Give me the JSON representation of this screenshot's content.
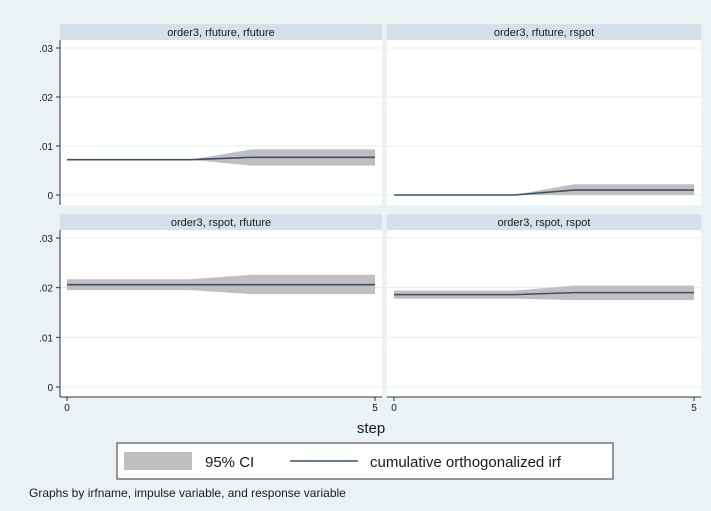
{
  "chart_data": [
    {
      "type": "area",
      "title": "order3, rfuture, rfuture",
      "x": [
        0,
        1,
        2,
        3,
        4,
        5
      ],
      "series": [
        {
          "name": "95% CI",
          "lower": [
            0.0072,
            0.0072,
            0.0072,
            0.006,
            0.006,
            0.006
          ],
          "upper": [
            0.0072,
            0.0072,
            0.0072,
            0.0093,
            0.0093,
            0.0093
          ]
        },
        {
          "name": "cumulative orthogonalized irf",
          "values": [
            0.0072,
            0.0072,
            0.0072,
            0.0077,
            0.0077,
            0.0077
          ]
        }
      ]
    },
    {
      "type": "area",
      "title": "order3, rfuture, rspot",
      "x": [
        0,
        1,
        2,
        3,
        4,
        5
      ],
      "series": [
        {
          "name": "95% CI",
          "lower": [
            0,
            0,
            0,
            0,
            0,
            0
          ],
          "upper": [
            0,
            0,
            0,
            0.0022,
            0.0022,
            0.0022
          ]
        },
        {
          "name": "cumulative orthogonalized irf",
          "values": [
            0,
            0,
            0,
            0.001,
            0.001,
            0.001
          ]
        }
      ]
    },
    {
      "type": "area",
      "title": "order3, rspot, rfuture",
      "x": [
        0,
        1,
        2,
        3,
        4,
        5
      ],
      "series": [
        {
          "name": "95% CI",
          "lower": [
            0.0195,
            0.0195,
            0.0195,
            0.0187,
            0.0187,
            0.0187
          ],
          "upper": [
            0.0217,
            0.0217,
            0.0217,
            0.0226,
            0.0226,
            0.0226
          ]
        },
        {
          "name": "cumulative orthogonalized irf",
          "values": [
            0.0206,
            0.0206,
            0.0206,
            0.0206,
            0.0206,
            0.0206
          ]
        }
      ]
    },
    {
      "type": "area",
      "title": "order3, rspot, rspot",
      "x": [
        0,
        1,
        2,
        3,
        4,
        5
      ],
      "series": [
        {
          "name": "95% CI",
          "lower": [
            0.0178,
            0.0178,
            0.0178,
            0.0175,
            0.0175,
            0.0175
          ],
          "upper": [
            0.0194,
            0.0194,
            0.0194,
            0.0204,
            0.0204,
            0.0204
          ]
        },
        {
          "name": "cumulative orthogonalized irf",
          "values": [
            0.0186,
            0.0186,
            0.0186,
            0.019,
            0.019,
            0.019
          ]
        }
      ]
    }
  ],
  "shared": {
    "xlabel": "step",
    "ylim": [
      0,
      0.03
    ],
    "y_ticks": [
      ".03",
      ".02",
      ".01",
      "0"
    ],
    "y_tick_values": [
      0.03,
      0.02,
      0.01,
      0
    ],
    "x_ticks": [
      "0",
      "5"
    ],
    "x_tick_values": [
      0,
      5
    ]
  },
  "legend": [
    {
      "label": "95% CI",
      "kind": "band"
    },
    {
      "label": "cumulative orthogonalized irf",
      "kind": "line"
    }
  ],
  "note": "Graphs by irfname, impulse variable, and response variable",
  "colors": {
    "background": "#eaf2f3",
    "panel": "#ffffff",
    "header": "#d4e1e8",
    "band": "#bfbfbf",
    "line": "#3c5069",
    "grid": "#e5ecee",
    "axis": "#333333"
  }
}
